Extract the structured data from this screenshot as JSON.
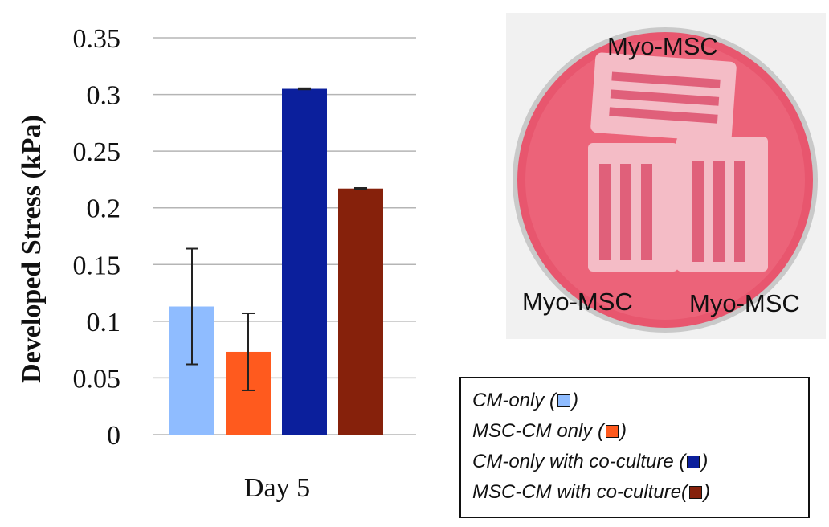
{
  "chart_data": {
    "type": "bar",
    "categories": [
      "Day 5"
    ],
    "ylabel": "Developed Stress (kPa)",
    "xlabel": "",
    "ylim": [
      0,
      0.35
    ],
    "yticks": [
      "0",
      "0.05",
      "0.1",
      "0.15",
      "0.2",
      "0.25",
      "0.3",
      "0.35"
    ],
    "grid": true,
    "series": [
      {
        "name": "CM-only",
        "values": [
          0.113
        ],
        "error": [
          0.051
        ],
        "color": "#8fbcff"
      },
      {
        "name": "MSC-CM only",
        "values": [
          0.073
        ],
        "error": [
          0.034
        ],
        "color": "#ff5a1e"
      },
      {
        "name": "CM-only with co-culture",
        "values": [
          0.305
        ],
        "error": [
          0.0005
        ],
        "color": "#0b1f9c"
      },
      {
        "name": "MSC-CM with co-culture",
        "values": [
          0.217
        ],
        "error": [
          0.0005
        ],
        "color": "#86210b"
      }
    ]
  },
  "legend": {
    "items": [
      {
        "label_before": "CM-only (",
        "label_after": ")",
        "color": "#8fbcff"
      },
      {
        "label_before": "MSC-CM only (",
        "label_after": ")",
        "color": "#ff5a1e"
      },
      {
        "label_before": "CM-only with co-culture (",
        "label_after": ")",
        "color": "#0b1f9c"
      },
      {
        "label_before": "MSC-CM with co-culture(",
        "label_after": ")",
        "color": "#86210b"
      }
    ]
  },
  "photo": {
    "labels": {
      "top": "Myo-MSC",
      "bottom_left": "Myo-MSC",
      "bottom_right": "Myo-MSC"
    },
    "colors": {
      "dish": "#e8566e",
      "well": "#f4bcc6",
      "channel": "#e0607a"
    }
  }
}
